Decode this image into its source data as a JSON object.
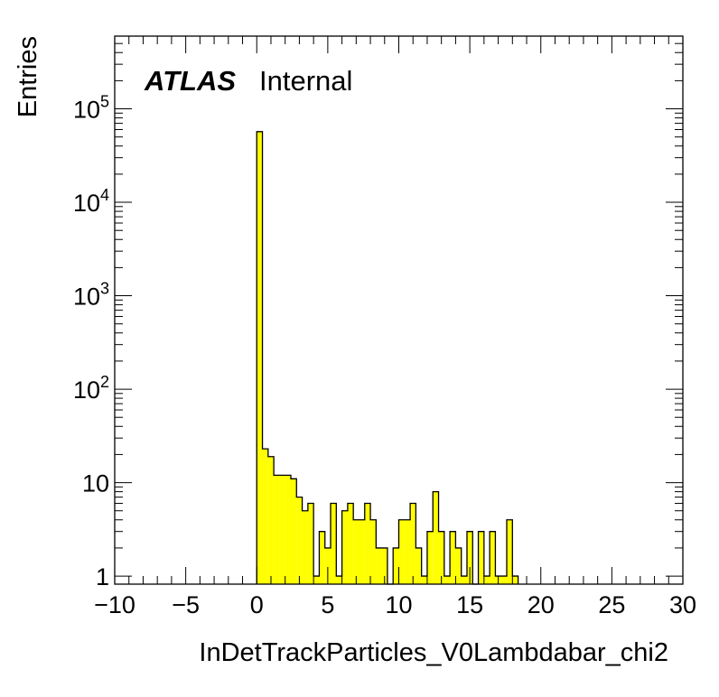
{
  "chart_data": {
    "type": "bar",
    "xlabel": "InDetTrackParticles_V0Lambdabar_chi2",
    "ylabel": "Entries",
    "xlim": [
      -10,
      30
    ],
    "ylim": [
      0.82,
      600000
    ],
    "log_y": true,
    "bin_width": 0.4,
    "fill_color": "#ffff00",
    "line_color": "#000000",
    "x_ticks": [
      "−10",
      "−5",
      "0",
      "5",
      "10",
      "15",
      "20",
      "25",
      "30"
    ],
    "y_ticks": [
      {
        "value": 1,
        "base": "1",
        "exp": ""
      },
      {
        "value": 10,
        "base": "10",
        "exp": ""
      },
      {
        "value": 100,
        "base": "10",
        "exp": "2"
      },
      {
        "value": 1000,
        "base": "10",
        "exp": "3"
      },
      {
        "value": 10000,
        "base": "10",
        "exp": "4"
      },
      {
        "value": 100000,
        "base": "10",
        "exp": "5"
      }
    ],
    "series": [
      {
        "bin_low_edges": [
          0.0,
          0.4,
          0.8,
          1.2,
          1.6,
          2.0,
          2.4,
          2.8,
          3.2,
          3.6,
          4.0,
          4.4,
          4.8,
          5.2,
          5.6,
          6.0,
          6.4,
          6.8,
          7.2,
          7.6,
          8.0,
          8.4,
          8.8,
          9.2,
          9.6,
          10.0,
          10.4,
          10.8,
          11.2,
          11.6,
          12.0,
          12.4,
          12.8,
          13.2,
          13.6,
          14.0,
          14.4,
          14.8,
          15.2,
          15.6,
          16.0,
          16.4,
          16.8,
          17.2,
          17.6,
          18.0
        ],
        "values": [
          57000,
          23,
          19,
          12,
          12,
          12,
          11,
          7,
          5,
          6,
          1,
          3,
          2,
          6,
          1,
          5,
          6,
          4,
          4,
          6,
          4,
          2,
          2,
          0,
          2,
          4,
          4,
          6,
          2,
          1,
          3,
          8,
          3,
          1,
          3,
          2,
          1,
          3,
          0,
          3,
          1,
          3,
          1,
          1,
          4,
          1
        ]
      }
    ],
    "annotations": [
      {
        "text": "ATLAS",
        "style": "bold-italic"
      },
      {
        "text": "Internal",
        "style": "normal"
      }
    ]
  }
}
